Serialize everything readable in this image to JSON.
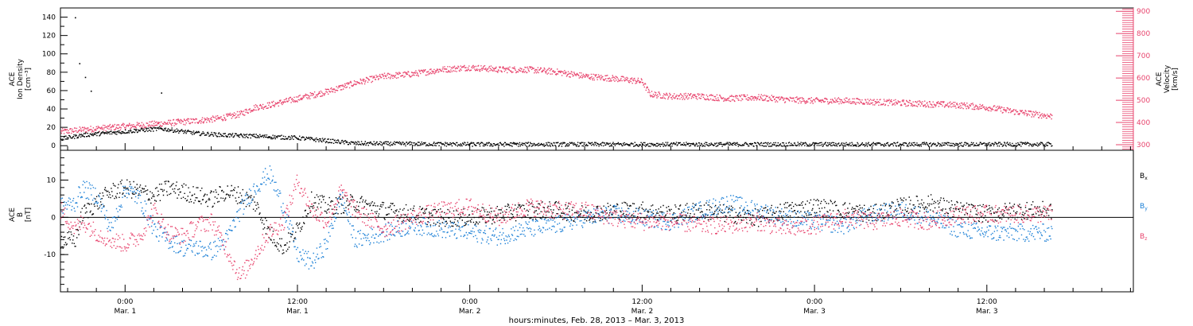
{
  "figure": {
    "x_axis_title": "hours:minutes, Feb. 28, 2013 – Mar.  3, 2013",
    "x_ticks": [
      {
        "hour": 24,
        "time": "0:00",
        "date": "Mar. 1"
      },
      {
        "hour": 36,
        "time": "12:00",
        "date": "Mar. 1"
      },
      {
        "hour": 48,
        "time": "0:00",
        "date": "Mar. 2"
      },
      {
        "hour": 60,
        "time": "12:00",
        "date": "Mar. 2"
      },
      {
        "hour": 72,
        "time": "0:00",
        "date": "Mar. 3"
      },
      {
        "hour": 84,
        "time": "12:00",
        "date": "Mar. 3"
      }
    ],
    "x_range_hours": [
      19.5,
      94.2
    ],
    "colors": {
      "density": "#000000",
      "velocity": "#e8456e",
      "bx": "#000000",
      "by": "#1a7fd6",
      "bz": "#e8456e",
      "axis": "#000000"
    }
  },
  "chart_data": [
    {
      "type": "scatter",
      "panel": "plasma",
      "ylabel_left": [
        "ACE",
        "Ion Density",
        "[cm⁻³]"
      ],
      "ylabel_right": [
        "ACE",
        "Velocity",
        "[km/s]"
      ],
      "yticks_left": [
        0,
        20,
        40,
        60,
        80,
        100,
        120,
        140
      ],
      "yticks_right": [
        300,
        400,
        500,
        600,
        700,
        800,
        900
      ],
      "ylim_left": [
        -5,
        150
      ],
      "ylim_right": [
        275,
        915
      ],
      "series": [
        {
          "axis": "left",
          "color": "#000000",
          "x": [
            19.5,
            21,
            22.5,
            24,
            25.5,
            26.5,
            27.5,
            29,
            31,
            33,
            34.5,
            36,
            40,
            48,
            56,
            64,
            72,
            80,
            88.5
          ],
          "y": [
            8,
            12,
            14,
            16,
            18,
            19,
            17,
            14,
            12,
            11,
            10,
            9,
            3,
            2,
            2,
            2,
            2,
            2,
            2
          ]
        },
        {
          "axis": "right",
          "color": "#e8456e",
          "x": [
            19.5,
            21,
            23,
            25,
            27,
            29,
            30.5,
            32,
            33,
            34,
            36,
            38,
            40,
            42,
            44,
            46,
            48,
            50,
            52,
            54,
            56,
            58,
            59.5,
            60,
            60.5,
            62,
            64,
            66,
            68,
            70,
            72,
            74,
            76,
            78,
            80,
            82,
            84,
            86,
            88.5
          ],
          "y": [
            360,
            370,
            380,
            390,
            400,
            410,
            420,
            440,
            470,
            480,
            510,
            540,
            580,
            610,
            620,
            640,
            650,
            640,
            640,
            630,
            610,
            600,
            590,
            585,
            530,
            520,
            520,
            510,
            515,
            505,
            500,
            500,
            495,
            490,
            485,
            480,
            470,
            450,
            430
          ]
        },
        {
          "axis": "left",
          "color": "#000000",
          "note": "isolated high points",
          "x": [
            20.5,
            20.8,
            21.2,
            21.6,
            26.5
          ],
          "y": [
            140,
            90,
            75,
            60,
            58
          ]
        }
      ]
    },
    {
      "type": "scatter",
      "panel": "field",
      "ylabel": [
        "ACE",
        "B",
        "[nT]"
      ],
      "yticks": [
        -10,
        0,
        10
      ],
      "ylim": [
        -20,
        18
      ],
      "legend": [
        {
          "text": "B",
          "sub": "x",
          "color": "#000000"
        },
        {
          "text": "B",
          "sub": "y",
          "color": "#1a7fd6"
        },
        {
          "text": "B",
          "sub": "z",
          "color": "#e8456e"
        }
      ],
      "series": [
        {
          "name": "Bx",
          "color": "#000000",
          "x": [
            19.5,
            20.5,
            21,
            22,
            23,
            24,
            25,
            26,
            27,
            28,
            29,
            30,
            31,
            32,
            33,
            34,
            35,
            36,
            37,
            38,
            40,
            42,
            44,
            46,
            48,
            50,
            52,
            54,
            56,
            58,
            60,
            62,
            64,
            66,
            68,
            70,
            72,
            74,
            76,
            78,
            80,
            82,
            84,
            86,
            88.5
          ],
          "y": [
            -6,
            -6,
            1,
            4,
            7,
            8,
            7,
            6,
            8,
            7,
            6,
            5,
            7,
            6,
            4,
            -4,
            -8,
            -3,
            5,
            3,
            4,
            2,
            1,
            0,
            0,
            1,
            2,
            2,
            1,
            2,
            2,
            1,
            2,
            1,
            0,
            2,
            3,
            2,
            1,
            3,
            4,
            2,
            1,
            2,
            2
          ]
        },
        {
          "name": "By",
          "color": "#1a7fd6",
          "x": [
            19.5,
            20.5,
            21,
            22,
            23,
            24,
            25,
            26,
            27,
            28,
            29,
            30,
            31,
            32,
            33,
            34,
            35,
            36,
            37,
            38,
            39,
            40,
            42,
            44,
            46,
            48,
            50,
            52,
            54,
            56,
            58,
            60,
            62,
            64,
            66,
            68,
            70,
            72,
            74,
            76,
            78,
            80,
            82,
            84,
            86,
            88.5
          ],
          "y": [
            3,
            4,
            8,
            6,
            -3,
            8,
            5,
            -3,
            -6,
            -8,
            -8,
            -9,
            -6,
            2,
            8,
            12,
            3,
            -10,
            -12,
            -7,
            6,
            -6,
            -4,
            -2,
            -3,
            -4,
            -5,
            -3,
            -2,
            0,
            1,
            0,
            -1,
            2,
            4,
            2,
            0,
            -1,
            -2,
            1,
            2,
            0,
            -3,
            -4,
            -4,
            -4
          ]
        },
        {
          "name": "Bz",
          "color": "#e8456e",
          "x": [
            19.5,
            20.5,
            21,
            22,
            23,
            24,
            25,
            26,
            27,
            28,
            29,
            30,
            31,
            32,
            33,
            34,
            35,
            36,
            37,
            38,
            39,
            40,
            42,
            44,
            46,
            48,
            50,
            52,
            54,
            56,
            58,
            60,
            62,
            64,
            66,
            68,
            70,
            72,
            74,
            76,
            78,
            80,
            82,
            84,
            86,
            88.5
          ],
          "y": [
            2,
            -3,
            -1,
            -4,
            -6,
            -7,
            -5,
            2,
            -4,
            -5,
            -2,
            -1,
            -8,
            -16,
            -10,
            -4,
            -1,
            10,
            2,
            -1,
            7,
            2,
            -3,
            0,
            2,
            3,
            0,
            3,
            2,
            2,
            0,
            -1,
            -1,
            -2,
            -2,
            -1,
            -3,
            -2,
            0,
            -1,
            0,
            -1,
            1,
            1,
            1,
            1
          ]
        }
      ]
    }
  ]
}
